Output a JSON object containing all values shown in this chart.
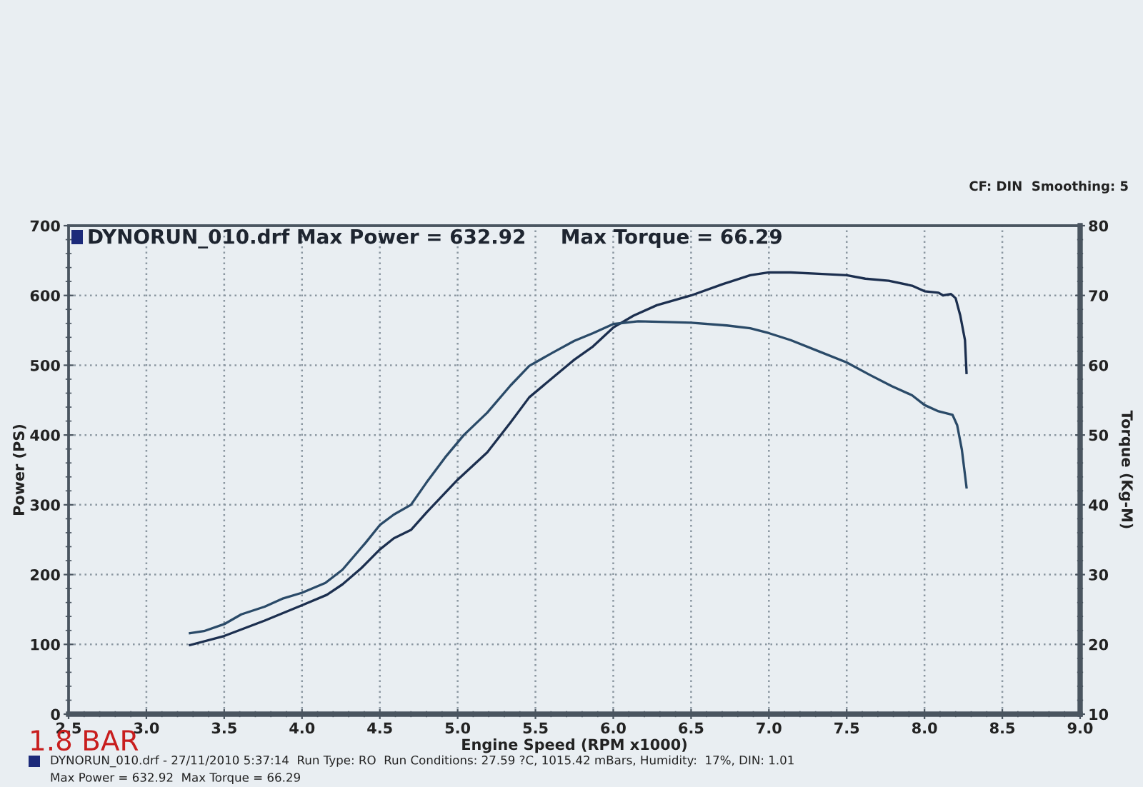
{
  "chart_data": {
    "type": "line",
    "title": "DYNORUN_010.drf Max Power = 632.92     Max Torque = 66.29",
    "xlabel": "Engine Speed (RPM x1000)",
    "ylabel": "Power (PS)",
    "y2label": "Torque (Kg-M)",
    "annotations": [
      "CF: DIN  Smoothing: 5",
      "1.8 BAR",
      "DYNORUN_010.drf - 27/11/2010 5:37:14  Run Type: RO  Run Conditions: 27.59 ?C, 1015.42 mBars, Humidity:  17%, DIN: 1.01",
      "Max Power = 632.92  Max Torque = 66.29"
    ],
    "series": [
      {
        "color": "#1c2f4f",
        "x": [
          3.28,
          3.5,
          3.76,
          4.0,
          4.16,
          4.26,
          4.38,
          4.5,
          4.59,
          4.7,
          4.8,
          5.0,
          5.19,
          5.34,
          5.46,
          5.61,
          5.75,
          5.87,
          6.0,
          6.13,
          6.28,
          6.5,
          6.7,
          6.88,
          7.0,
          7.14,
          7.32,
          7.5,
          7.62,
          7.77,
          7.92,
          8.0,
          8.09,
          8.12,
          8.17,
          8.2,
          8.23,
          8.26,
          8.27
        ],
        "values": [
          99,
          112,
          134,
          156,
          171,
          186,
          209,
          236,
          252,
          264,
          289,
          336,
          375,
          418,
          454,
          482,
          508,
          527,
          554,
          571,
          586,
          600,
          616,
          629,
          633,
          633,
          631,
          629,
          624,
          621,
          614,
          606,
          604,
          600,
          602,
          596,
          571,
          536,
          489
        ]
      },
      {
        "color": "#2a4a68",
        "axis": "y2",
        "x": [
          3.28,
          3.37,
          3.5,
          3.61,
          3.76,
          3.88,
          4.0,
          4.15,
          4.26,
          4.41,
          4.5,
          4.59,
          4.7,
          4.8,
          4.92,
          5.04,
          5.19,
          5.34,
          5.46,
          5.61,
          5.75,
          5.87,
          6.0,
          6.16,
          6.34,
          6.5,
          6.73,
          6.88,
          7.0,
          7.14,
          7.32,
          7.5,
          7.65,
          7.79,
          7.92,
          8.0,
          8.09,
          8.18,
          8.21,
          8.24,
          8.27
        ],
        "values": [
          21.6,
          21.9,
          22.9,
          24.3,
          25.4,
          26.6,
          27.4,
          28.8,
          30.7,
          34.6,
          37.1,
          38.6,
          40.0,
          43.2,
          46.8,
          50.0,
          53.2,
          57.1,
          59.9,
          61.8,
          63.5,
          64.6,
          65.9,
          66.3,
          66.2,
          66.1,
          65.7,
          65.3,
          64.6,
          63.6,
          62.0,
          60.4,
          58.6,
          57.0,
          55.7,
          54.3,
          53.4,
          52.9,
          51.4,
          47.9,
          42.5
        ]
      }
    ],
    "xlim": [
      2.5,
      9.0
    ],
    "xticks": [
      2.5,
      {
        "value": 3,
        "label": "3.0"
      },
      3.5,
      {
        "value": 4,
        "label": "4.0"
      },
      4.5,
      {
        "value": 5,
        "label": "5.0"
      },
      5.5,
      {
        "value": 6,
        "label": "6.0"
      },
      6.5,
      {
        "value": 7,
        "label": "7.0"
      },
      7.5,
      {
        "value": 8,
        "label": "8.0"
      },
      8.5,
      {
        "value": 9,
        "label": "9.0"
      }
    ],
    "ylim": [
      0,
      700
    ],
    "yticks": [
      0,
      100,
      200,
      300,
      400,
      500,
      600,
      700
    ],
    "y2lim": [
      10,
      80
    ],
    "y2ticks": [
      10,
      20,
      30,
      40,
      50,
      60,
      70,
      80
    ],
    "grid": true,
    "marker": "none",
    "line_style": "solid"
  }
}
